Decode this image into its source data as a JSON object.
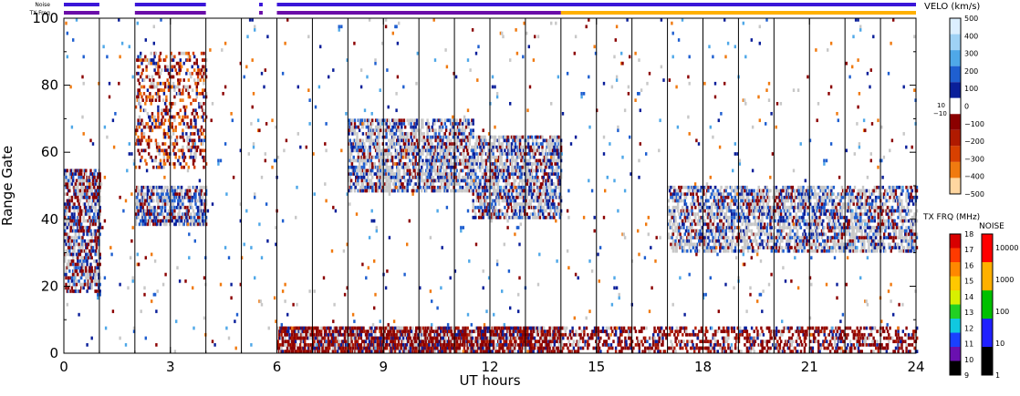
{
  "status_bars": {
    "noise_label": "Noise",
    "txfreq_label": "TX Freq",
    "noise_segments": [
      [
        0.0,
        1.0
      ],
      [
        2.0,
        4.0
      ],
      [
        5.5,
        5.6
      ],
      [
        6.0,
        24.0
      ]
    ],
    "txfreq_segments": [
      [
        0.0,
        1.0
      ],
      [
        2.0,
        4.0
      ],
      [
        5.5,
        5.6
      ],
      [
        6.0,
        14.0
      ]
    ],
    "txfreq_alt_segments": [
      [
        14.0,
        24.0
      ]
    ],
    "colors": {
      "primary": "#3a16d8",
      "secondary": "#6a0da8",
      "alt": "#ffb000"
    }
  },
  "chart_data": {
    "type": "heatmap",
    "xlabel": "UT hours",
    "ylabel": "Range Gate",
    "xlim": [
      0,
      24
    ],
    "ylim": [
      0,
      100
    ],
    "xticks": [
      0,
      3,
      6,
      9,
      12,
      15,
      18,
      21,
      24
    ],
    "yticks": [
      0,
      20,
      40,
      60,
      80,
      100
    ],
    "scan_boundaries": [
      1.0,
      2.0,
      3.0,
      4.0,
      5.0,
      6.0,
      7.0,
      8.0,
      9.0,
      10.0,
      11.0,
      12.0,
      13.0,
      14.0,
      15.0,
      16.0,
      17.0,
      18.0,
      19.0,
      20.0,
      21.0,
      22.0,
      23.0
    ],
    "echo_regions": [
      {
        "t0": 0.0,
        "t1": 1.0,
        "g0": 18,
        "g1": 55,
        "density": 0.55,
        "mix": "red-blue-gray"
      },
      {
        "t0": 2.0,
        "t1": 4.0,
        "g0": 38,
        "g1": 50,
        "density": 0.6,
        "mix": "gray-blue-red"
      },
      {
        "t0": 2.0,
        "t1": 4.0,
        "g0": 55,
        "g1": 90,
        "density": 0.25,
        "mix": "red-orange"
      },
      {
        "t0": 8.0,
        "t1": 11.5,
        "g0": 48,
        "g1": 70,
        "density": 0.55,
        "mix": "gray-blue-red"
      },
      {
        "t0": 11.5,
        "t1": 14.0,
        "g0": 40,
        "g1": 65,
        "density": 0.55,
        "mix": "gray-blue-red"
      },
      {
        "t0": 17.0,
        "t1": 24.0,
        "g0": 30,
        "g1": 50,
        "density": 0.5,
        "mix": "gray-blue-red"
      },
      {
        "t0": 6.0,
        "t1": 14.0,
        "g0": 0,
        "g1": 8,
        "density": 0.7,
        "mix": "red-blue"
      },
      {
        "t0": 14.0,
        "t1": 24.0,
        "g0": 0,
        "g1": 8,
        "density": 0.35,
        "mix": "red-blue"
      },
      {
        "t0": 0.0,
        "t1": 24.0,
        "g0": 0,
        "g1": 100,
        "density": 0.012,
        "mix": "scatter"
      }
    ],
    "velocity_scale": {
      "title": "VELO (km/s)",
      "labels": [
        "500",
        "400",
        "300",
        "200",
        "100",
        "0",
        "−100",
        "−200",
        "−300",
        "−400",
        "−500"
      ],
      "small_labels": [
        "10",
        "−10"
      ],
      "colors": [
        "#dcefff",
        "#9fd2f5",
        "#4fa8e8",
        "#1f5fd0",
        "#0a1f9a",
        "#ffffff",
        "#8b0000",
        "#b01a00",
        "#d84000",
        "#f07a10",
        "#ffd6a0"
      ]
    },
    "txfreq_scale": {
      "title": "TX FRQ (MHz)",
      "labels": [
        "18",
        "17",
        "16",
        "15",
        "14",
        "13",
        "12",
        "11",
        "10",
        "9"
      ],
      "colors": [
        "#d80000",
        "#ff3a00",
        "#ff8800",
        "#ffc800",
        "#d8f000",
        "#22d022",
        "#10c8e0",
        "#1a40ff",
        "#6a10b0",
        "#000000"
      ]
    },
    "noise_scale": {
      "title": "NOISE",
      "labels": [
        "10000",
        "1000",
        "100",
        "10",
        "1"
      ],
      "colors": [
        "#ff0000",
        "#ffb000",
        "#00c000",
        "#2020ff",
        "#000000"
      ]
    }
  }
}
